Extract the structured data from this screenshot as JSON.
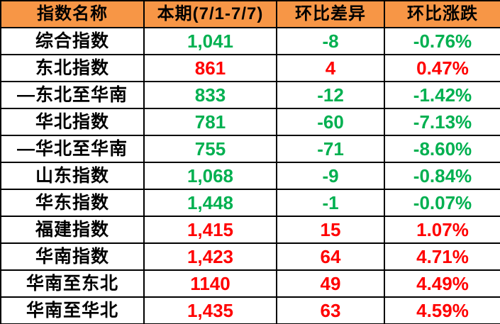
{
  "colors": {
    "header_bg": "#F79646",
    "header_text": "#000000",
    "up_color": "#FF0000",
    "down_color": "#00B050",
    "border": "#000000",
    "row_bg": "#FFFFFF"
  },
  "table": {
    "headers": [
      "指数名称",
      "本期(7/1-7/7)",
      "环比差异",
      "环比涨跌"
    ],
    "rows": [
      {
        "name": "综合指数",
        "current": "1,041",
        "diff": "-8",
        "change": "-0.76%",
        "trend": "down"
      },
      {
        "name": "东北指数",
        "current": "861",
        "diff": "4",
        "change": "0.47%",
        "trend": "up"
      },
      {
        "name": "—东北至华南",
        "current": "833",
        "diff": "-12",
        "change": "-1.42%",
        "trend": "down"
      },
      {
        "name": "华北指数",
        "current": "781",
        "diff": "-60",
        "change": "-7.13%",
        "trend": "down"
      },
      {
        "name": "—华北至华南",
        "current": "755",
        "diff": "-71",
        "change": "-8.60%",
        "trend": "down"
      },
      {
        "name": "山东指数",
        "current": "1,068",
        "diff": "-9",
        "change": "-0.84%",
        "trend": "down"
      },
      {
        "name": "华东指数",
        "current": "1,448",
        "diff": "-1",
        "change": "-0.07%",
        "trend": "down"
      },
      {
        "name": "福建指数",
        "current": "1,415",
        "diff": "15",
        "change": "1.07%",
        "trend": "up"
      },
      {
        "name": "华南指数",
        "current": "1,423",
        "diff": "64",
        "change": "4.71%",
        "trend": "up"
      },
      {
        "name": "华南至东北",
        "current": "1140",
        "diff": "49",
        "change": "4.49%",
        "trend": "up"
      },
      {
        "name": "华南至华北",
        "current": "1,435",
        "diff": "63",
        "change": "4.59%",
        "trend": "up"
      }
    ]
  },
  "chart_data": {
    "type": "table",
    "title": "",
    "columns": [
      "指数名称",
      "本期(7/1-7/7)",
      "环比差异",
      "环比涨跌"
    ],
    "rows": [
      [
        "综合指数",
        1041,
        -8,
        "-0.76%"
      ],
      [
        "东北指数",
        861,
        4,
        "0.47%"
      ],
      [
        "—东北至华南",
        833,
        -12,
        "-1.42%"
      ],
      [
        "华北指数",
        781,
        -60,
        "-7.13%"
      ],
      [
        "—华北至华南",
        755,
        -71,
        "-8.60%"
      ],
      [
        "山东指数",
        1068,
        -9,
        "-0.84%"
      ],
      [
        "华东指数",
        1448,
        -1,
        "-0.07%"
      ],
      [
        "福建指数",
        1415,
        15,
        "1.07%"
      ],
      [
        "华南指数",
        1423,
        64,
        "4.71%"
      ],
      [
        "华南至东北",
        1140,
        49,
        "4.49%"
      ],
      [
        "华南至华北",
        1435,
        63,
        "4.59%"
      ]
    ],
    "layout_hints": {
      "header_background": "#F79646",
      "positive_change_color": "#FF0000",
      "negative_change_color": "#00B050",
      "grid": true
    }
  }
}
